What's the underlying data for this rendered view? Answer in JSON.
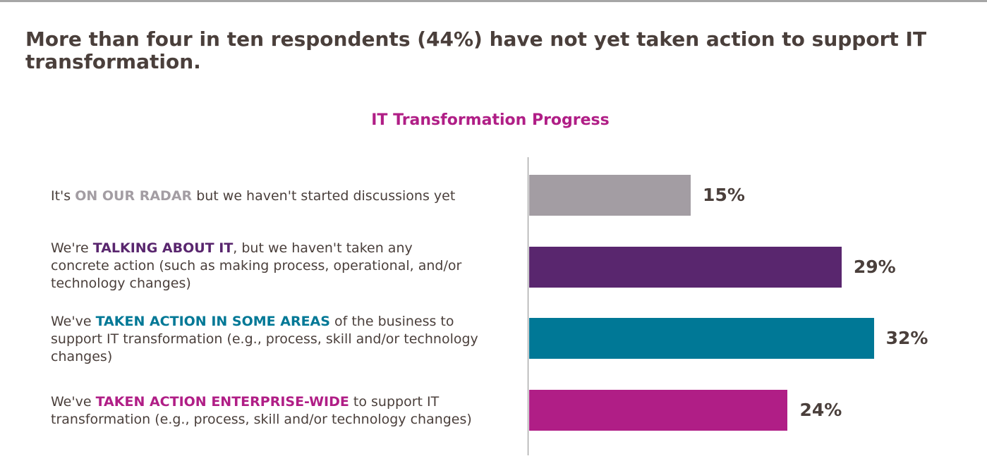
{
  "headline": "More than four in ten respondents (44%) have not yet taken action to support IT transformation.",
  "chart_data": {
    "type": "bar",
    "orientation": "horizontal",
    "title": "IT Transformation Progress",
    "categories": [
      "It's ON OUR RADAR but we haven't started discussions yet",
      "We're TALKING ABOUT IT, but we haven't taken any concrete action (such as making process, operational, and/or technology changes)",
      "We've TAKEN ACTION IN SOME AREAS of the business to support IT transformation (e.g., process, skill and/or technology changes)",
      "We've TAKEN ACTION ENTERPRISE-WIDE  to support IT transformation (e.g., process, skill and/or technology changes)"
    ],
    "values": [
      15,
      29,
      32,
      24
    ],
    "value_labels": [
      "15%",
      "29%",
      "32%",
      "24%"
    ],
    "colors": [
      "#a39da3",
      "#59266e",
      "#007896",
      "#b01e86"
    ],
    "xlim": [
      0,
      100
    ],
    "grid": false,
    "legend": "none"
  },
  "rows": [
    {
      "pre": "It's ",
      "highlight": "ON OUR RADAR",
      "post": " but we haven't started discussions yet",
      "highlight_color": "#a39da3"
    },
    {
      "pre": "We're ",
      "highlight": "TALKING ABOUT IT",
      "post": ", but we haven't taken any concrete action (such as making process, operational, and/or technology changes)",
      "highlight_color": "#59266e"
    },
    {
      "pre": "We've ",
      "highlight": "TAKEN ACTION IN SOME AREAS",
      "post": " of the business to support IT transformation (e.g., process, skill and/or technology changes)",
      "highlight_color": "#007896"
    },
    {
      "pre": "We've ",
      "highlight": "TAKEN ACTION ENTERPRISE-WIDE",
      "post": "  to support IT transformation (e.g., process, skill and/or technology changes)",
      "highlight_color": "#b01e86"
    }
  ]
}
